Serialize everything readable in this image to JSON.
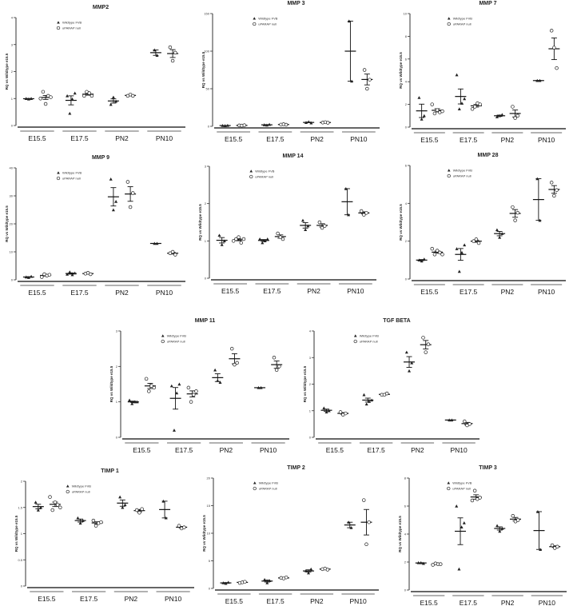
{
  "legend": {
    "wildtype": "Wildtype FVB",
    "null": "uPARAP null"
  },
  "ylabel_default": "RQ vs Wildtype e15.5",
  "categories": [
    "E15.5",
    "E17.5",
    "PN2",
    "PN10"
  ],
  "chart_data": [
    {
      "type": "scatter",
      "title": "MMP2",
      "ylabel": "RQ vs Wildtype e15.5",
      "ylim": [
        0,
        4
      ],
      "yticks": [
        0,
        1,
        2,
        3,
        4
      ],
      "series": [
        {
          "name": "Wildtype FVB",
          "groups": [
            [
              1.0,
              0.98,
              1.0
            ],
            [
              1.1,
              0.45,
              0.98,
              1.2
            ],
            [
              0.78,
              1.05,
              0.9
            ],
            [
              2.8,
              2.6
            ]
          ]
        },
        {
          "name": "uPARAP null",
          "groups": [
            [
              1.0,
              1.25,
              0.8,
              1.1,
              1.05
            ],
            [
              1.1,
              1.25,
              1.2,
              1.1
            ],
            [
              1.1,
              1.15,
              1.1
            ],
            [
              2.9,
              2.4,
              2.7
            ]
          ]
        }
      ]
    },
    {
      "type": "scatter",
      "title": "MMP 3",
      "ylabel": "RQ vs Wildtype e15.5",
      "ylim": [
        0,
        150
      ],
      "yticks": [
        0,
        50,
        100,
        150
      ],
      "series": [
        {
          "name": "Wildtype FVB",
          "groups": [
            [
              1,
              0.8,
              1.2
            ],
            [
              2,
              1.5,
              2.5
            ],
            [
              5,
              6,
              4.5
            ],
            [
              140,
              60
            ]
          ]
        },
        {
          "name": "uPARAP null",
          "groups": [
            [
              1.2,
              0.9,
              1.4
            ],
            [
              2.3,
              2.8,
              2.1
            ],
            [
              5,
              5.5,
              4.8
            ],
            [
              75,
              50,
              62
            ]
          ]
        }
      ]
    },
    {
      "type": "scatter",
      "title": "MMP 7",
      "ylabel": "RQ vs Wildtype e15.5",
      "ylim": [
        0,
        10
      ],
      "yticks": [
        0,
        2,
        4,
        6,
        8,
        10
      ],
      "series": [
        {
          "name": "Wildtype FVB",
          "groups": [
            [
              2.6,
              0.7,
              1.0
            ],
            [
              4.6,
              1.6,
              2.1,
              2.5
            ],
            [
              0.9,
              1.0,
              1.1
            ],
            [
              4.1,
              4.1
            ]
          ]
        },
        {
          "name": "uPARAP null",
          "groups": [
            [
              2.0,
              1.2,
              1.5,
              1.3,
              1.4
            ],
            [
              1.6,
              1.8,
              2.1,
              2.0
            ],
            [
              1.8,
              0.8,
              1.0
            ],
            [
              8.5,
              7.0,
              5.2
            ]
          ]
        }
      ]
    },
    {
      "type": "scatter",
      "title": "MMP 9",
      "ylabel": "RQ vs Wildtype e15.5",
      "ylim": [
        0,
        40
      ],
      "yticks": [
        0,
        10,
        20,
        30,
        40
      ],
      "series": [
        {
          "name": "Wildtype FVB",
          "groups": [
            [
              1.0,
              0.8,
              1.2
            ],
            [
              2.0,
              2.8,
              1.8,
              2.4
            ],
            [
              36,
              25,
              28
            ],
            [
              13,
              13
            ]
          ]
        },
        {
          "name": "uPARAP null",
          "groups": [
            [
              1.0,
              2.0,
              1.5,
              1.8
            ],
            [
              2.2,
              2.5,
              2.0
            ],
            [
              35,
              26,
              31
            ],
            [
              9.5,
              10.0,
              9.0
            ]
          ]
        }
      ]
    },
    {
      "type": "scatter",
      "title": "MMP 14",
      "ylabel": "RQ vs Wildtype e15.5",
      "ylim": [
        0,
        3
      ],
      "yticks": [
        0,
        1,
        2,
        3
      ],
      "series": [
        {
          "name": "Wildtype FVB",
          "groups": [
            [
              1.15,
              0.9,
              1.0
            ],
            [
              1.05,
              0.95,
              1.0,
              1.05
            ],
            [
              1.55,
              1.3,
              1.4
            ],
            [
              2.4,
              1.7
            ]
          ]
        },
        {
          "name": "uPARAP null",
          "groups": [
            [
              1.0,
              1.05,
              1.1,
              0.95,
              1.05
            ],
            [
              1.2,
              1.1,
              1.05
            ],
            [
              1.5,
              1.35,
              1.4
            ],
            [
              1.8,
              1.7,
              1.75
            ]
          ]
        }
      ]
    },
    {
      "type": "scatter",
      "title": "MMP 28",
      "ylabel": "RQ vs Wildtype e15.5",
      "ylim": [
        0,
        6
      ],
      "yticks": [
        0,
        2,
        4,
        6
      ],
      "series": [
        {
          "name": "Wildtype FVB",
          "groups": [
            [
              1.0,
              0.95,
              1.05
            ],
            [
              1.6,
              0.4,
              1.4,
              1.8
            ],
            [
              2.6,
              2.2,
              2.4
            ],
            [
              5.3,
              3.1
            ]
          ]
        },
        {
          "name": "uPARAP null",
          "groups": [
            [
              1.6,
              1.3,
              1.5,
              1.4,
              1.3
            ],
            [
              2.0,
              2.1,
              1.9
            ],
            [
              3.8,
              3.1,
              3.5
            ],
            [
              5.1,
              4.4,
              4.7
            ]
          ]
        }
      ]
    },
    {
      "type": "scatter",
      "title": "MMP 11",
      "ylabel": "RQ vs Wildtype e15.5",
      "ylim": [
        0,
        3
      ],
      "yticks": [
        0,
        1,
        2,
        3
      ],
      "series": [
        {
          "name": "Wildtype FVB",
          "groups": [
            [
              1.05,
              0.95,
              1.0,
              1.0
            ],
            [
              1.45,
              0.2,
              1.25,
              1.5
            ],
            [
              1.9,
              1.6,
              1.55
            ],
            [
              1.4,
              1.4
            ]
          ]
        },
        {
          "name": "uPARAP null",
          "groups": [
            [
              1.65,
              1.3,
              1.45,
              1.4
            ],
            [
              1.4,
              1.0,
              1.2,
              1.3
            ],
            [
              2.5,
              2.05,
              2.1
            ],
            [
              2.25,
              1.9,
              2.0
            ]
          ]
        }
      ]
    },
    {
      "type": "scatter",
      "title": "TGF BETA",
      "ylabel": "RQ vs Wildtype e15.5",
      "ylim": [
        0,
        4
      ],
      "yticks": [
        0,
        1,
        2,
        3,
        4
      ],
      "series": [
        {
          "name": "Wildtype FVB",
          "groups": [
            [
              1.1,
              0.95,
              1.0
            ],
            [
              1.6,
              1.25,
              1.35,
              1.4
            ],
            [
              3.2,
              2.5,
              2.8
            ],
            [
              0.65,
              0.65
            ]
          ]
        },
        {
          "name": "uPARAP null",
          "groups": [
            [
              0.95,
              0.85,
              0.9
            ],
            [
              1.6,
              1.6,
              1.65
            ],
            [
              3.75,
              3.2,
              3.5
            ],
            [
              0.6,
              0.45,
              0.5
            ]
          ]
        }
      ]
    },
    {
      "type": "scatter",
      "title": "TIMP 1",
      "ylabel": "RQ vs Wildtype e15.5",
      "ylim": [
        0,
        2
      ],
      "yticks": [
        0,
        0.5,
        1.0,
        1.5,
        2.0
      ],
      "series": [
        {
          "name": "Wildtype FVB",
          "groups": [
            [
              1.6,
              1.45,
              1.5
            ],
            [
              1.3,
              1.2,
              1.25
            ],
            [
              1.7,
              1.5,
              1.55
            ],
            [
              1.62,
              1.3
            ]
          ]
        },
        {
          "name": "uPARAP null",
          "groups": [
            [
              1.7,
              1.45,
              1.6,
              1.55,
              1.5
            ],
            [
              1.25,
              1.15,
              1.2,
              1.22
            ],
            [
              1.45,
              1.4,
              1.47
            ],
            [
              1.15,
              1.1,
              1.12
            ]
          ]
        }
      ]
    },
    {
      "type": "scatter",
      "title": "TIMP 2",
      "ylabel": "RQ vs Wildtype e15.5",
      "ylim": [
        0,
        20
      ],
      "yticks": [
        0,
        5,
        10,
        15,
        20
      ],
      "series": [
        {
          "name": "Wildtype FVB",
          "groups": [
            [
              1.0,
              0.9,
              1.1
            ],
            [
              1.6,
              1.0,
              1.4
            ],
            [
              3.2,
              2.8,
              3.5
            ],
            [
              12,
              11
            ]
          ]
        },
        {
          "name": "uPARAP null",
          "groups": [
            [
              1.0,
              1.1,
              1.2
            ],
            [
              1.9,
              1.8,
              2.0
            ],
            [
              3.5,
              3.6,
              3.4
            ],
            [
              16,
              8,
              12
            ]
          ]
        }
      ]
    },
    {
      "type": "scatter",
      "title": "TIMP 3",
      "ylabel": "RQ vs Wildtype e15.5",
      "ylim": [
        0,
        8
      ],
      "yticks": [
        0,
        2,
        4,
        6,
        8
      ],
      "series": [
        {
          "name": "Wildtype FVB",
          "groups": [
            [
              1.95,
              1.95,
              1.9
            ],
            [
              6.0,
              1.5,
              4.5,
              4.8
            ],
            [
              4.6,
              4.2,
              4.4
            ],
            [
              5.6,
              2.9
            ]
          ]
        },
        {
          "name": "uPARAP null",
          "groups": [
            [
              1.8,
              1.9,
              1.85,
              1.85
            ],
            [
              6.4,
              7.1,
              6.5,
              6.6
            ],
            [
              5.3,
              4.9,
              5.0
            ],
            [
              3.2,
              3.0,
              3.1
            ]
          ]
        }
      ]
    }
  ]
}
